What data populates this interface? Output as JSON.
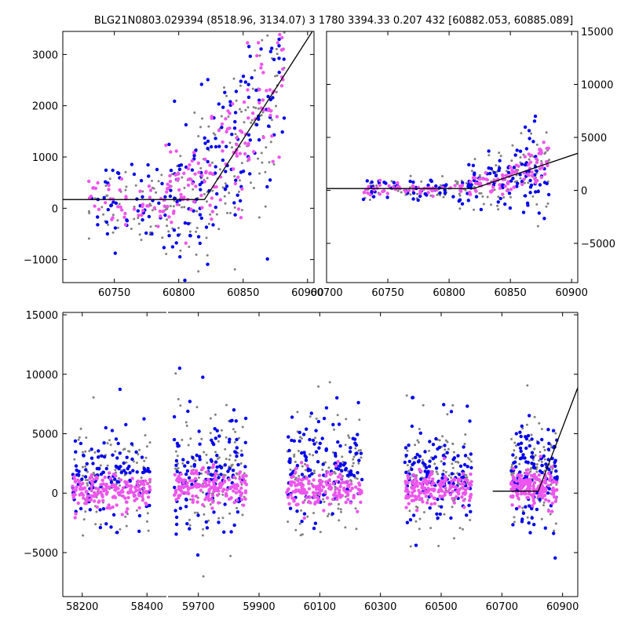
{
  "title": "BLG21N0803.029394 (8518.96, 3134.07)   3 1780 3394.33 0.207 432 [60882.053, 60885.089]",
  "colors": {
    "grey": "#808080",
    "blue": "#0000ee",
    "magenta": "#ee55ee",
    "model": "#000000",
    "axis": "#000000"
  },
  "chart_data": [
    {
      "name": "zoom-left",
      "type": "scatter",
      "xlim": [
        60710,
        60905
      ],
      "ylim": [
        -1450,
        3450
      ],
      "xticks": [
        60750,
        60800,
        60850,
        60900
      ],
      "xtick_labels": [
        "60750",
        "60800",
        "60850",
        "60900"
      ],
      "yticks": [
        -1000,
        0,
        1000,
        2000,
        3000
      ],
      "ytick_labels": [
        "−1000",
        "0",
        "1000",
        "2000",
        "3000"
      ],
      "ytick_side": "left",
      "model_line": {
        "x": [
          60710,
          60820,
          60905
        ],
        "y": [
          170,
          170,
          3500
        ]
      },
      "point_clouds": [
        {
          "x": [
            60730,
            60790
          ],
          "base": 100,
          "spread": 400
        },
        {
          "x": [
            60790,
            60820
          ],
          "base": 300,
          "spread": 700
        },
        {
          "x": [
            60820,
            60850
          ],
          "base": 800,
          "spread": 900
        },
        {
          "x": [
            60850,
            60882
          ],
          "base": 2000,
          "spread": 1100
        }
      ],
      "series": [
        "grey",
        "blue",
        "magenta"
      ]
    },
    {
      "name": "zoom-right",
      "type": "scatter",
      "xlim": [
        60700,
        60905
      ],
      "ylim": [
        -8700,
        15000
      ],
      "xticks": [
        60700,
        60750,
        60800,
        60850,
        60900
      ],
      "xtick_labels": [
        "60700",
        "60750",
        "60800",
        "60850",
        "60900"
      ],
      "yticks": [
        -5000,
        0,
        5000,
        10000,
        15000
      ],
      "ytick_labels": [
        "−5000",
        "0",
        "5000",
        "10000",
        "15000"
      ],
      "ytick_side": "right",
      "model_line": {
        "x": [
          60700,
          60820,
          60905
        ],
        "y": [
          170,
          170,
          3500
        ]
      },
      "point_clouds": [
        {
          "x": [
            60730,
            60805
          ],
          "base": 100,
          "spread": 500
        },
        {
          "x": [
            60805,
            60850
          ],
          "base": 600,
          "spread": 1200
        },
        {
          "x": [
            60850,
            60882
          ],
          "base": 2000,
          "spread": 2000
        }
      ],
      "series": [
        "grey",
        "blue",
        "magenta"
      ]
    },
    {
      "name": "full-season",
      "type": "scatter",
      "segments": [
        {
          "xlim": [
            58140,
            58460
          ],
          "xticks": [
            58200,
            58400
          ],
          "xtick_labels": [
            "58200",
            "58400"
          ],
          "point_clouds": [
            {
              "x": [
                58170,
                58410
              ],
              "base": 300,
              "spread": 1500
            }
          ]
        },
        {
          "xlim": [
            59600,
            60950
          ],
          "xticks": [
            59700,
            59900,
            60100,
            60300,
            60500,
            60700,
            60900
          ],
          "xtick_labels": [
            "59700",
            "59900",
            "60100",
            "60300",
            "60500",
            "60700",
            "60900"
          ],
          "point_clouds": [
            {
              "x": [
                59620,
                59860
              ],
              "base": 700,
              "spread": 1800
            },
            {
              "x": [
                59990,
                60240
              ],
              "base": 800,
              "spread": 1700
            },
            {
              "x": [
                60380,
                60600
              ],
              "base": 600,
              "spread": 1600
            },
            {
              "x": [
                60730,
                60882
              ],
              "base": 900,
              "spread": 1500
            }
          ],
          "model_line": {
            "x": [
              60670,
              60820,
              60955
            ],
            "y": [
              170,
              170,
              9200
            ]
          }
        }
      ],
      "ylim": [
        -8700,
        15200
      ],
      "yticks": [
        -5000,
        0,
        5000,
        10000,
        15000
      ],
      "ytick_labels": [
        "−5000",
        "0",
        "5000",
        "10000",
        "15000"
      ],
      "ytick_side": "left",
      "series": [
        "grey",
        "blue",
        "magenta"
      ]
    }
  ]
}
